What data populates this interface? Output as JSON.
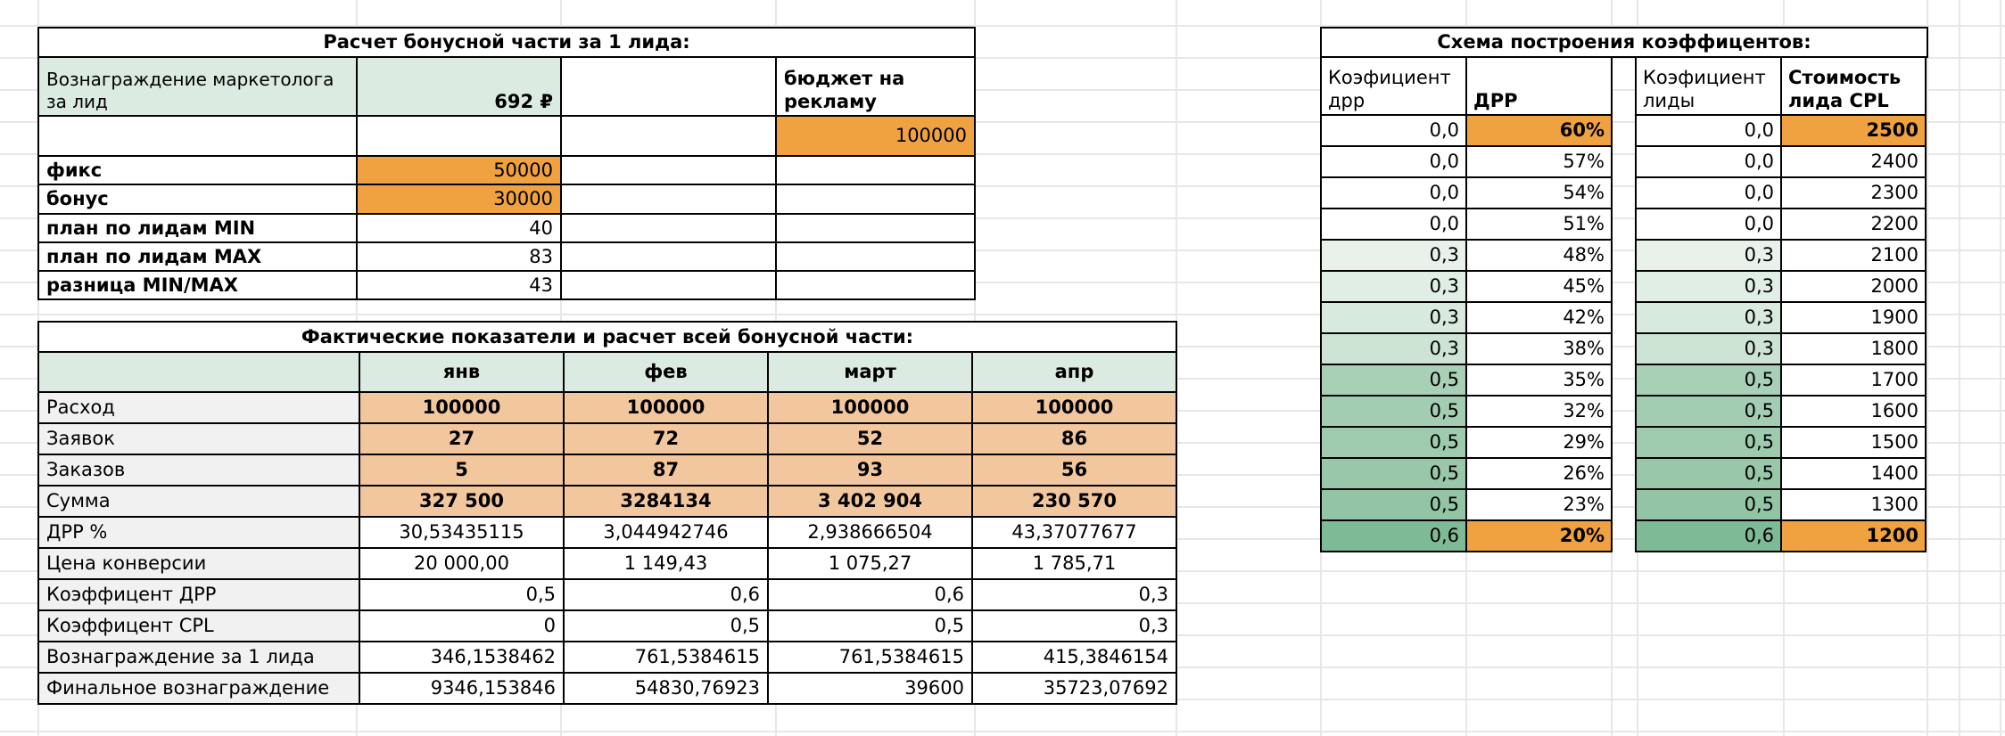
{
  "colors": {
    "orange": "#f0a240",
    "peach": "#f3c79e",
    "mint": "#dcebe1",
    "gray_label": "#f1f1f1",
    "coef_shades": [
      "#ffffff",
      "#ffffff",
      "#ffffff",
      "#ffffff",
      "#e8f2eb",
      "#e0eee5",
      "#d8eadd",
      "#cde4d4",
      "#a8d0b7",
      "#a3cdb3",
      "#9ecaae",
      "#98c7aa",
      "#93c4a6",
      "#7fba96"
    ]
  },
  "calc_table": {
    "title": "Расчет бонусной части за 1 лида:",
    "reward_label": "Вознаграждение маркетолога за лид",
    "reward_value": "692 ₽",
    "budget_label": "бюджет на рекламу",
    "budget_value": "100000",
    "rows": [
      {
        "label": "фикс",
        "value": "50000",
        "highlight": true
      },
      {
        "label": "бонус",
        "value": "30000",
        "highlight": true
      },
      {
        "label": "план по лидам MIN",
        "value": "40",
        "highlight": false
      },
      {
        "label": "план по лидам MAX",
        "value": "83",
        "highlight": false
      },
      {
        "label": "разница MIN/MAX",
        "value": "43",
        "highlight": false
      }
    ]
  },
  "fact_table": {
    "title": "Фактические показатели и расчет всей бонусной части:",
    "months": [
      "янв",
      "фев",
      "март",
      "апр"
    ],
    "rows": [
      {
        "label": "Расход",
        "values": [
          "100000",
          "100000",
          "100000",
          "100000"
        ],
        "style": "orange"
      },
      {
        "label": "Заявок",
        "values": [
          "27",
          "72",
          "52",
          "86"
        ],
        "style": "orange"
      },
      {
        "label": "Заказов",
        "values": [
          "5",
          "87",
          "93",
          "56"
        ],
        "style": "orange"
      },
      {
        "label": "Сумма",
        "values": [
          "327 500",
          "3284134",
          "3 402 904",
          "230 570"
        ],
        "style": "orange"
      },
      {
        "label": "ДРР %",
        "values": [
          "30,53435115",
          "3,044942746",
          "2,938666504",
          "43,37077677"
        ],
        "style": "center"
      },
      {
        "label": "Цена конверсии",
        "values": [
          "20 000,00",
          "1 149,43",
          "1 075,27",
          "1 785,71"
        ],
        "style": "center"
      },
      {
        "label": "Коэффицент ДРР",
        "values": [
          "0,5",
          "0,6",
          "0,6",
          "0,3"
        ],
        "style": "right"
      },
      {
        "label": "Коэффицент CPL",
        "values": [
          "0",
          "0,5",
          "0,5",
          "0,3"
        ],
        "style": "right"
      },
      {
        "label": "Вознаграждение за 1 лида",
        "values": [
          "346,1538462",
          "761,5384615",
          "761,5384615",
          "415,3846154"
        ],
        "style": "right"
      },
      {
        "label": "Финальное вознаграждение",
        "values": [
          "9346,153846",
          "54830,76923",
          "39600",
          "35723,07692"
        ],
        "style": "right"
      }
    ]
  },
  "scheme": {
    "title": "Схема построения коэффицентов:",
    "highlight_rows": [
      0,
      13
    ],
    "drr": {
      "col1": "Коэфициент дрр",
      "col2": "ДРР",
      "rows": [
        [
          "0,0",
          "60%"
        ],
        [
          "0,0",
          "57%"
        ],
        [
          "0,0",
          "54%"
        ],
        [
          "0,0",
          "51%"
        ],
        [
          "0,3",
          "48%"
        ],
        [
          "0,3",
          "45%"
        ],
        [
          "0,3",
          "42%"
        ],
        [
          "0,3",
          "38%"
        ],
        [
          "0,5",
          "35%"
        ],
        [
          "0,5",
          "32%"
        ],
        [
          "0,5",
          "29%"
        ],
        [
          "0,5",
          "26%"
        ],
        [
          "0,5",
          "23%"
        ],
        [
          "0,6",
          "20%"
        ]
      ]
    },
    "cpl": {
      "col1": "Коэфициент лиды",
      "col2": "Стоимость лида CPL",
      "rows": [
        [
          "0,0",
          "2500"
        ],
        [
          "0,0",
          "2400"
        ],
        [
          "0,0",
          "2300"
        ],
        [
          "0,0",
          "2200"
        ],
        [
          "0,3",
          "2100"
        ],
        [
          "0,3",
          "2000"
        ],
        [
          "0,3",
          "1900"
        ],
        [
          "0,3",
          "1800"
        ],
        [
          "0,5",
          "1700"
        ],
        [
          "0,5",
          "1600"
        ],
        [
          "0,5",
          "1500"
        ],
        [
          "0,5",
          "1400"
        ],
        [
          "0,5",
          "1300"
        ],
        [
          "0,6",
          "1200"
        ]
      ]
    }
  }
}
